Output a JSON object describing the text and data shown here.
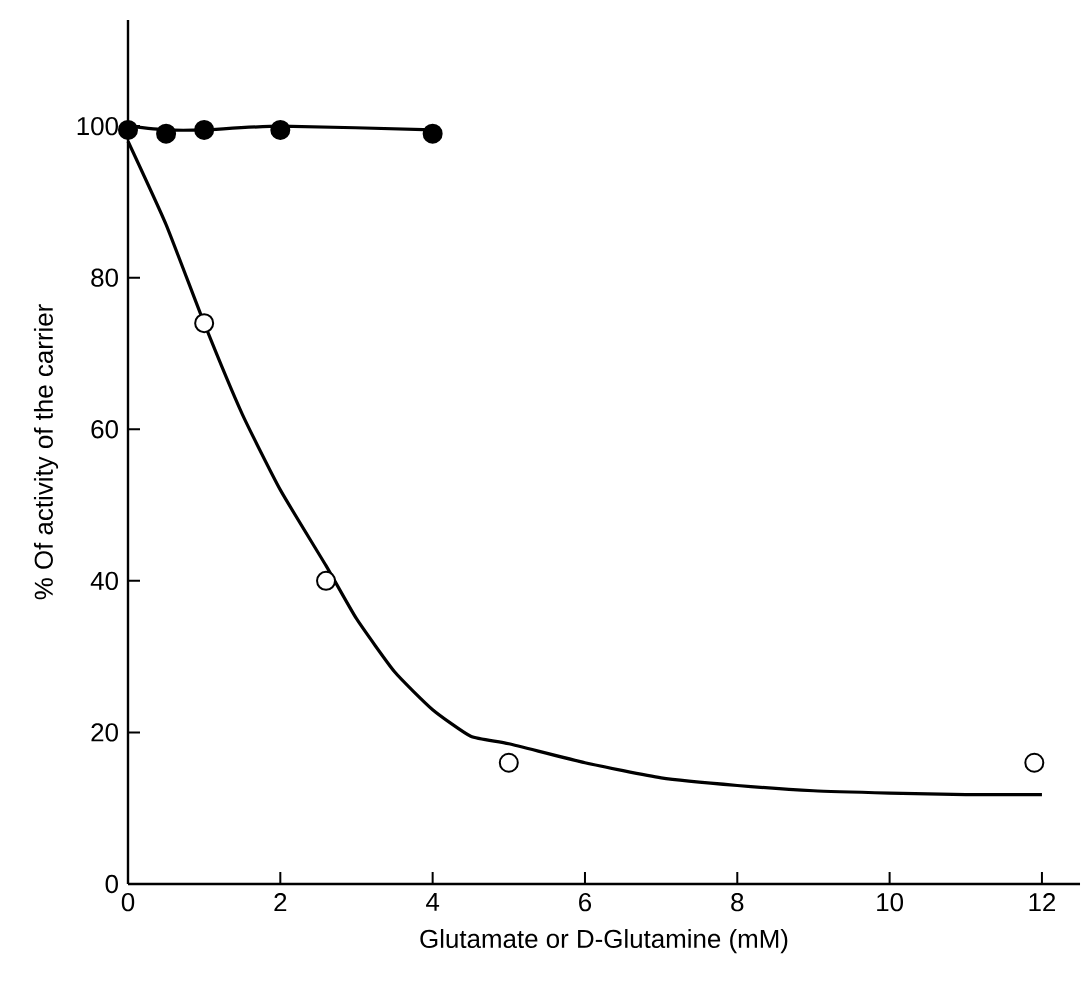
{
  "chart_data": {
    "type": "scatter",
    "xlabel": "Glutamate or D-Glutamine (mM)",
    "ylabel": "% Of activity of the carrier",
    "xlim": [
      0,
      12.5
    ],
    "ylim": [
      0,
      114
    ],
    "xticks": [
      0,
      2,
      4,
      6,
      8,
      10,
      12
    ],
    "yticks": [
      0,
      20,
      40,
      60,
      80,
      100
    ],
    "grid": false,
    "series": [
      {
        "type": "line",
        "color": "#000000",
        "marker": "none",
        "line_style": "solid",
        "x": [
          0,
          0.5,
          1,
          2,
          4
        ],
        "values": [
          100,
          99.5,
          99.5,
          100,
          99.5
        ]
      },
      {
        "color": "#000000",
        "marker": "circle",
        "x": [
          0,
          0.5,
          1,
          2,
          4
        ],
        "values": [
          99.5,
          99,
          99.5,
          99.5,
          99
        ]
      },
      {
        "type": "line",
        "color": "#000000",
        "marker": "none",
        "line_style": "solid",
        "x": [
          0,
          0.5,
          1,
          1.5,
          2,
          2.6,
          3,
          3.5,
          4,
          4.5,
          5,
          6,
          7,
          8,
          9,
          10,
          11,
          12
        ],
        "values": [
          98,
          87,
          74,
          62,
          52,
          42,
          35,
          28,
          23,
          19.5,
          18.5,
          16,
          14,
          13,
          12.3,
          12,
          11.8,
          11.8
        ]
      },
      {
        "color": "#ffffff",
        "marker": "circle",
        "x": [
          1,
          2.6,
          5,
          11.9
        ],
        "values": [
          74,
          40,
          16,
          16
        ]
      }
    ]
  }
}
